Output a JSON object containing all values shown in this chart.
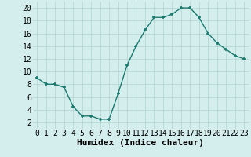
{
  "x": [
    0,
    1,
    2,
    3,
    4,
    5,
    6,
    7,
    8,
    9,
    10,
    11,
    12,
    13,
    14,
    15,
    16,
    17,
    18,
    19,
    20,
    21,
    22,
    23
  ],
  "y": [
    9.0,
    8.0,
    8.0,
    7.5,
    4.5,
    3.0,
    3.0,
    2.5,
    2.5,
    6.5,
    11.0,
    14.0,
    16.5,
    18.5,
    18.5,
    19.0,
    20.0,
    20.0,
    18.5,
    16.0,
    14.5,
    13.5,
    12.5,
    12.0
  ],
  "line_color": "#1a7a6e",
  "marker": "+",
  "xlabel": "Humidex (Indice chaleur)",
  "xlim": [
    -0.5,
    23.5
  ],
  "ylim": [
    1,
    21
  ],
  "yticks": [
    2,
    4,
    6,
    8,
    10,
    12,
    14,
    16,
    18,
    20
  ],
  "xticks": [
    0,
    1,
    2,
    3,
    4,
    5,
    6,
    7,
    8,
    9,
    10,
    11,
    12,
    13,
    14,
    15,
    16,
    17,
    18,
    19,
    20,
    21,
    22,
    23
  ],
  "bg_color": "#d4eeed",
  "grid_color": "#b0d4d0",
  "tick_fontsize": 7,
  "xlabel_fontsize": 8
}
